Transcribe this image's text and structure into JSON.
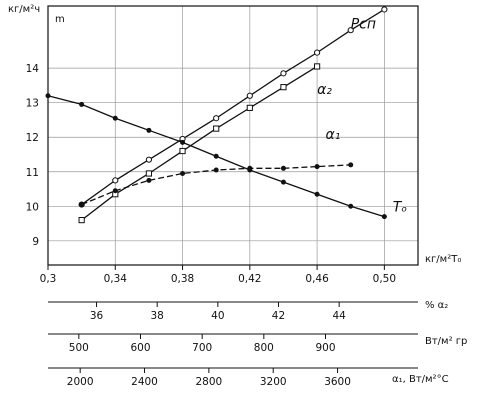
{
  "chart_data": {
    "type": "line",
    "y_unit_left": "кг/м²ч",
    "y_unit_right": "m",
    "ylim": [
      8.3,
      15.8
    ],
    "y_ticks": [
      9,
      10,
      11,
      12,
      13,
      14
    ],
    "axes": [
      {
        "key": "p",
        "label": "кг/м²Т₀",
        "range": [
          0.3,
          0.52
        ],
        "ticks": [
          0.3,
          0.34,
          0.38,
          0.42,
          0.46,
          0.5
        ],
        "tick_labels": [
          "0,3",
          "0,34",
          "0,38",
          "0,42",
          "0,46",
          "0,50"
        ]
      },
      {
        "key": "a2pct",
        "label": "% α₂",
        "range": [
          34.4,
          46.6
        ],
        "ticks": [
          36,
          38,
          40,
          42,
          44
        ],
        "tick_labels": [
          "36",
          "38",
          "40",
          "42",
          "44"
        ]
      },
      {
        "key": "a2",
        "label": "Вт/м² гр",
        "range": [
          450,
          1050
        ],
        "ticks": [
          500,
          600,
          700,
          800,
          900
        ],
        "tick_labels": [
          "500",
          "600",
          "700",
          "800",
          "900"
        ]
      },
      {
        "key": "a1",
        "label": "α₁, Вт/м²°С",
        "range": [
          1800,
          4100
        ],
        "ticks": [
          2000,
          2400,
          2800,
          3200,
          3600
        ],
        "tick_labels": [
          "2000",
          "2400",
          "2800",
          "3200",
          "3600"
        ]
      }
    ],
    "series": [
      {
        "name": "Pсп",
        "marker": "open-circle",
        "x": [
          0.32,
          0.34,
          0.36,
          0.38,
          0.4,
          0.42,
          0.44,
          0.46,
          0.48,
          0.5
        ],
        "y": [
          10.05,
          10.75,
          11.35,
          11.95,
          12.55,
          13.2,
          13.85,
          14.45,
          15.1,
          15.7
        ]
      },
      {
        "name": "α₂",
        "marker": "open-square",
        "x": [
          0.32,
          0.34,
          0.36,
          0.38,
          0.4,
          0.42,
          0.44,
          0.46
        ],
        "y": [
          9.6,
          10.35,
          10.95,
          11.6,
          12.25,
          12.85,
          13.45,
          14.05
        ]
      },
      {
        "name": "α₁",
        "marker": "filled-circle",
        "dashed": true,
        "x": [
          0.32,
          0.34,
          0.36,
          0.38,
          0.4,
          0.42,
          0.44,
          0.46,
          0.48
        ],
        "y": [
          10.05,
          10.45,
          10.75,
          10.95,
          11.05,
          11.1,
          11.1,
          11.15,
          11.2
        ]
      },
      {
        "name": "Tₒ",
        "marker": "filled-circle",
        "x": [
          0.3,
          0.32,
          0.34,
          0.36,
          0.38,
          0.4,
          0.42,
          0.44,
          0.46,
          0.48,
          0.5
        ],
        "y": [
          13.2,
          12.95,
          12.55,
          12.2,
          11.85,
          11.45,
          11.05,
          10.7,
          10.35,
          10.0,
          9.7
        ]
      }
    ],
    "grid": true
  }
}
